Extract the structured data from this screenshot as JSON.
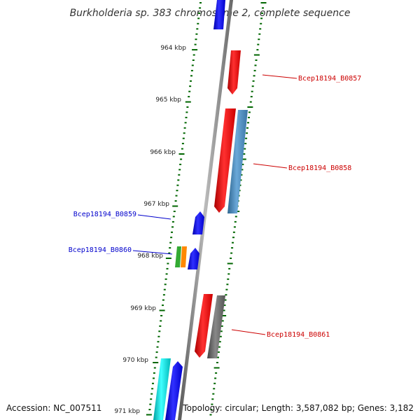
{
  "title": "Burkholderia sp. 383 chromosome 2, complete sequence",
  "scale_labels": [
    "964 kbp",
    "965 kbp",
    "966 kbp",
    "967 kbp",
    "968 kbp",
    "969 kbp",
    "970 kbp",
    "971 kbp"
  ],
  "gene_labels": [
    {
      "name": "Bcep18194_B0857",
      "color": "#cc0000"
    },
    {
      "name": "Bcep18194_B0858",
      "color": "#cc0000"
    },
    {
      "name": "Bcep18194_B0859",
      "color": "#0000cc"
    },
    {
      "name": "Bcep18194_B0860",
      "color": "#0000cc"
    },
    {
      "name": "Bcep18194_B0861",
      "color": "#cc0000"
    }
  ],
  "footer": {
    "accession": "Accession: NC_007511",
    "summary": "Topology: circular; Length: 3,587,082 bp; Genes: 3,182"
  },
  "colors": {
    "forward_strand": "#ff0000",
    "reverse_strand": "#0000ff",
    "steelblue_gene": "#4682b4",
    "gray_gene": "#666666",
    "cyan_gene": "#00cccc",
    "green_gene": "#33aa33",
    "orange_gene": "#ff8800",
    "backbone": "#888888",
    "ticks": "#006600"
  }
}
